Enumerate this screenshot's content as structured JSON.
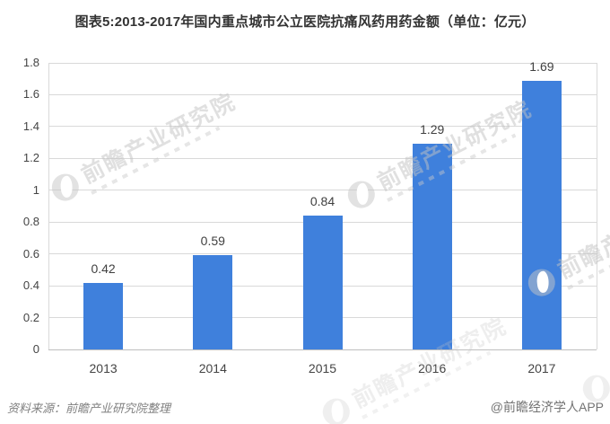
{
  "title": "图表5:2013-2017年国内重点城市公立医院抗痛风药用药金额（单位：亿元）",
  "chart_data": {
    "type": "bar",
    "title": "图表5:2013-2017年国内重点城市公立医院抗痛风药用药金额（单位：亿元）",
    "categories": [
      "2013",
      "2014",
      "2015",
      "2016",
      "2017"
    ],
    "values": [
      0.42,
      0.59,
      0.84,
      1.29,
      1.69
    ],
    "data_labels": [
      "0.42",
      "0.59",
      "0.84",
      "1.29",
      "1.69"
    ],
    "xlabel": "",
    "ylabel": "",
    "unit": "亿元",
    "ylim": [
      0,
      1.8
    ],
    "ytick_step": 0.2,
    "ytick_labels": [
      "0",
      "0.2",
      "0.4",
      "0.6",
      "0.8",
      "1",
      "1.2",
      "1.4",
      "1.6",
      "1.8"
    ],
    "grid": true,
    "legend": "none",
    "bar_color": "#3F80DC",
    "gridline_color": "#D9D9D9",
    "axis_color": "#BFBFBF"
  },
  "footer": {
    "source": "资料来源：前瞻产业研究院整理",
    "credit": "@前瞻经济学人APP"
  },
  "watermark": {
    "text": "前瞻产业研究院",
    "logo": "qianzhan-logo-icon"
  }
}
